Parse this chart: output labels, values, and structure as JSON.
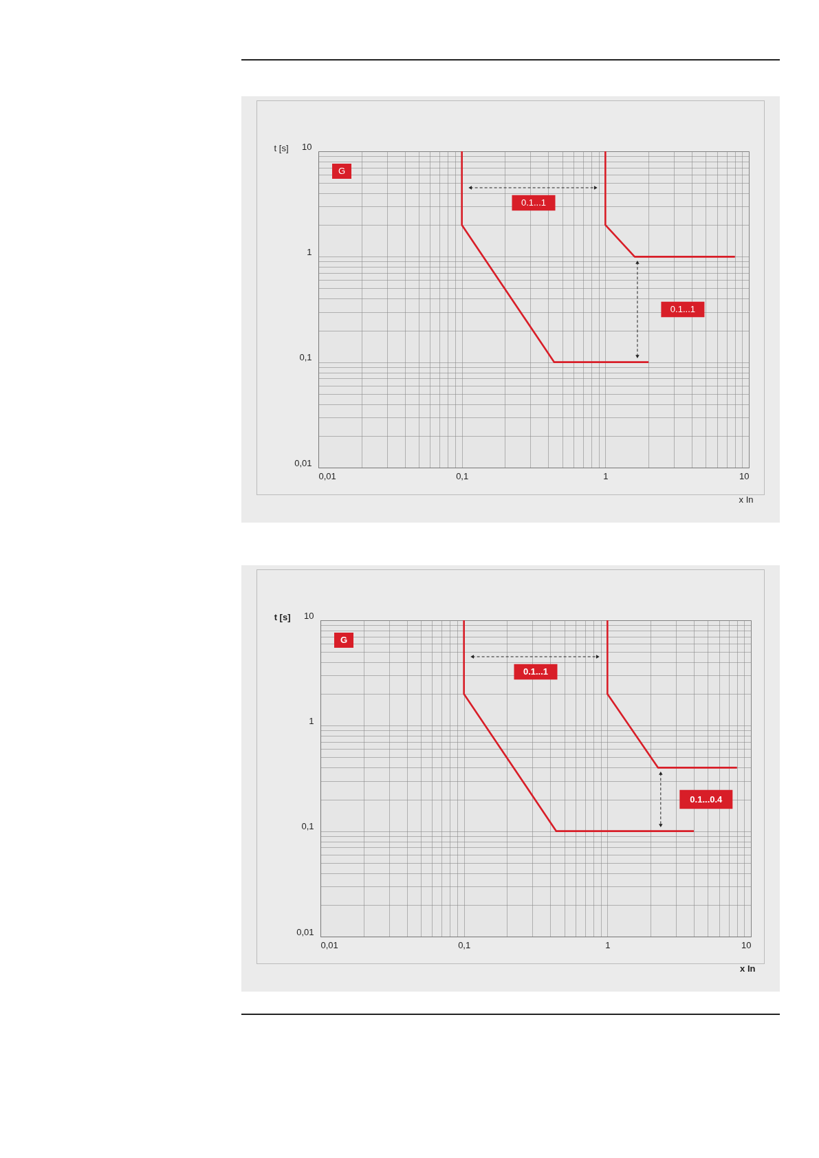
{
  "chart_data": [
    {
      "type": "line",
      "xlabel": "x In",
      "ylabel": "t [s]",
      "log": "xy",
      "grid": true,
      "legend": false,
      "xlim": [
        0.01,
        10
      ],
      "ylim": [
        0.01,
        10
      ],
      "xticks": [
        {
          "value": 0.01,
          "label": "0,01"
        },
        {
          "value": 0.02,
          "label": null
        },
        {
          "value": 0.03,
          "label": null
        },
        {
          "value": 0.04,
          "label": null
        },
        {
          "value": 0.05,
          "label": null
        },
        {
          "value": 0.06,
          "label": null
        },
        {
          "value": 0.07,
          "label": null
        },
        {
          "value": 0.08,
          "label": null
        },
        {
          "value": 0.09,
          "label": null
        },
        {
          "value": 0.1,
          "label": "0,1"
        },
        {
          "value": 0.2,
          "label": null
        },
        {
          "value": 0.3,
          "label": null
        },
        {
          "value": 0.4,
          "label": null
        },
        {
          "value": 0.5,
          "label": null
        },
        {
          "value": 0.6,
          "label": null
        },
        {
          "value": 0.7,
          "label": null
        },
        {
          "value": 0.8,
          "label": null
        },
        {
          "value": 0.9,
          "label": null
        },
        {
          "value": 1,
          "label": "1"
        },
        {
          "value": 2,
          "label": null
        },
        {
          "value": 3,
          "label": null
        },
        {
          "value": 4,
          "label": null
        },
        {
          "value": 5,
          "label": null
        },
        {
          "value": 6,
          "label": null
        },
        {
          "value": 7,
          "label": null
        },
        {
          "value": 8,
          "label": null
        },
        {
          "value": 9,
          "label": null
        },
        {
          "value": 10,
          "label": "10"
        }
      ],
      "yticks": [
        {
          "value": 0.01,
          "label": "0,01"
        },
        {
          "value": 0.02,
          "label": null
        },
        {
          "value": 0.03,
          "label": null
        },
        {
          "value": 0.04,
          "label": null
        },
        {
          "value": 0.05,
          "label": null
        },
        {
          "value": 0.06,
          "label": null
        },
        {
          "value": 0.07,
          "label": null
        },
        {
          "value": 0.08,
          "label": null
        },
        {
          "value": 0.09,
          "label": null
        },
        {
          "value": 0.1,
          "label": "0,1"
        },
        {
          "value": 0.2,
          "label": null
        },
        {
          "value": 0.3,
          "label": null
        },
        {
          "value": 0.4,
          "label": null
        },
        {
          "value": 0.5,
          "label": null
        },
        {
          "value": 0.6,
          "label": null
        },
        {
          "value": 0.7,
          "label": null
        },
        {
          "value": 0.8,
          "label": null
        },
        {
          "value": 0.9,
          "label": null
        },
        {
          "value": 1,
          "label": "1"
        },
        {
          "value": 2,
          "label": null
        },
        {
          "value": 3,
          "label": null
        },
        {
          "value": 4,
          "label": null
        },
        {
          "value": 5,
          "label": null
        },
        {
          "value": 6,
          "label": null
        },
        {
          "value": 7,
          "label": null
        },
        {
          "value": 8,
          "label": null
        },
        {
          "value": 9,
          "label": null
        },
        {
          "value": 10,
          "label": "10"
        }
      ],
      "series": [
        {
          "color": "#d81e28",
          "x": [
            0.1,
            0.1,
            0.44,
            2
          ],
          "values": [
            10,
            2,
            0.1,
            0.1
          ]
        },
        {
          "color": "#d81e28",
          "x": [
            1,
            1,
            1.6,
            8
          ],
          "values": [
            10,
            2,
            1,
            1
          ]
        }
      ],
      "annotations": [
        "G",
        "0.1...1",
        "0.1...1"
      ]
    },
    {
      "type": "line",
      "xlabel": "x In",
      "ylabel": "t [s]",
      "log": "xy",
      "grid": true,
      "legend": false,
      "xlim": [
        0.01,
        10
      ],
      "ylim": [
        0.01,
        10
      ],
      "xticks": [
        {
          "value": 0.01,
          "label": "0,01"
        },
        {
          "value": 0.02,
          "label": null
        },
        {
          "value": 0.03,
          "label": null
        },
        {
          "value": 0.04,
          "label": null
        },
        {
          "value": 0.05,
          "label": null
        },
        {
          "value": 0.06,
          "label": null
        },
        {
          "value": 0.07,
          "label": null
        },
        {
          "value": 0.08,
          "label": null
        },
        {
          "value": 0.09,
          "label": null
        },
        {
          "value": 0.1,
          "label": "0,1"
        },
        {
          "value": 0.2,
          "label": null
        },
        {
          "value": 0.3,
          "label": null
        },
        {
          "value": 0.4,
          "label": null
        },
        {
          "value": 0.5,
          "label": null
        },
        {
          "value": 0.6,
          "label": null
        },
        {
          "value": 0.7,
          "label": null
        },
        {
          "value": 0.8,
          "label": null
        },
        {
          "value": 0.9,
          "label": null
        },
        {
          "value": 1,
          "label": "1"
        },
        {
          "value": 2,
          "label": null
        },
        {
          "value": 3,
          "label": null
        },
        {
          "value": 4,
          "label": null
        },
        {
          "value": 5,
          "label": null
        },
        {
          "value": 6,
          "label": null
        },
        {
          "value": 7,
          "label": null
        },
        {
          "value": 8,
          "label": null
        },
        {
          "value": 9,
          "label": null
        },
        {
          "value": 10,
          "label": "10"
        }
      ],
      "yticks": [
        {
          "value": 0.01,
          "label": "0,01"
        },
        {
          "value": 0.02,
          "label": null
        },
        {
          "value": 0.03,
          "label": null
        },
        {
          "value": 0.04,
          "label": null
        },
        {
          "value": 0.05,
          "label": null
        },
        {
          "value": 0.06,
          "label": null
        },
        {
          "value": 0.07,
          "label": null
        },
        {
          "value": 0.08,
          "label": null
        },
        {
          "value": 0.09,
          "label": null
        },
        {
          "value": 0.1,
          "label": "0,1"
        },
        {
          "value": 0.2,
          "label": null
        },
        {
          "value": 0.3,
          "label": null
        },
        {
          "value": 0.4,
          "label": null
        },
        {
          "value": 0.5,
          "label": null
        },
        {
          "value": 0.6,
          "label": null
        },
        {
          "value": 0.7,
          "label": null
        },
        {
          "value": 0.8,
          "label": null
        },
        {
          "value": 0.9,
          "label": null
        },
        {
          "value": 1,
          "label": "1"
        },
        {
          "value": 2,
          "label": null
        },
        {
          "value": 3,
          "label": null
        },
        {
          "value": 4,
          "label": null
        },
        {
          "value": 5,
          "label": null
        },
        {
          "value": 6,
          "label": null
        },
        {
          "value": 7,
          "label": null
        },
        {
          "value": 8,
          "label": null
        },
        {
          "value": 9,
          "label": null
        },
        {
          "value": 10,
          "label": "10"
        }
      ],
      "series": [
        {
          "color": "#d81e28",
          "x": [
            0.1,
            0.1,
            0.44,
            4
          ],
          "values": [
            10,
            2,
            0.1,
            0.1
          ]
        },
        {
          "color": "#d81e28",
          "x": [
            1,
            1,
            2.25,
            8
          ],
          "values": [
            10,
            2,
            0.4,
            0.4
          ]
        }
      ],
      "annotations": [
        "G",
        "0.1...1",
        "0.1...0.4"
      ]
    }
  ]
}
